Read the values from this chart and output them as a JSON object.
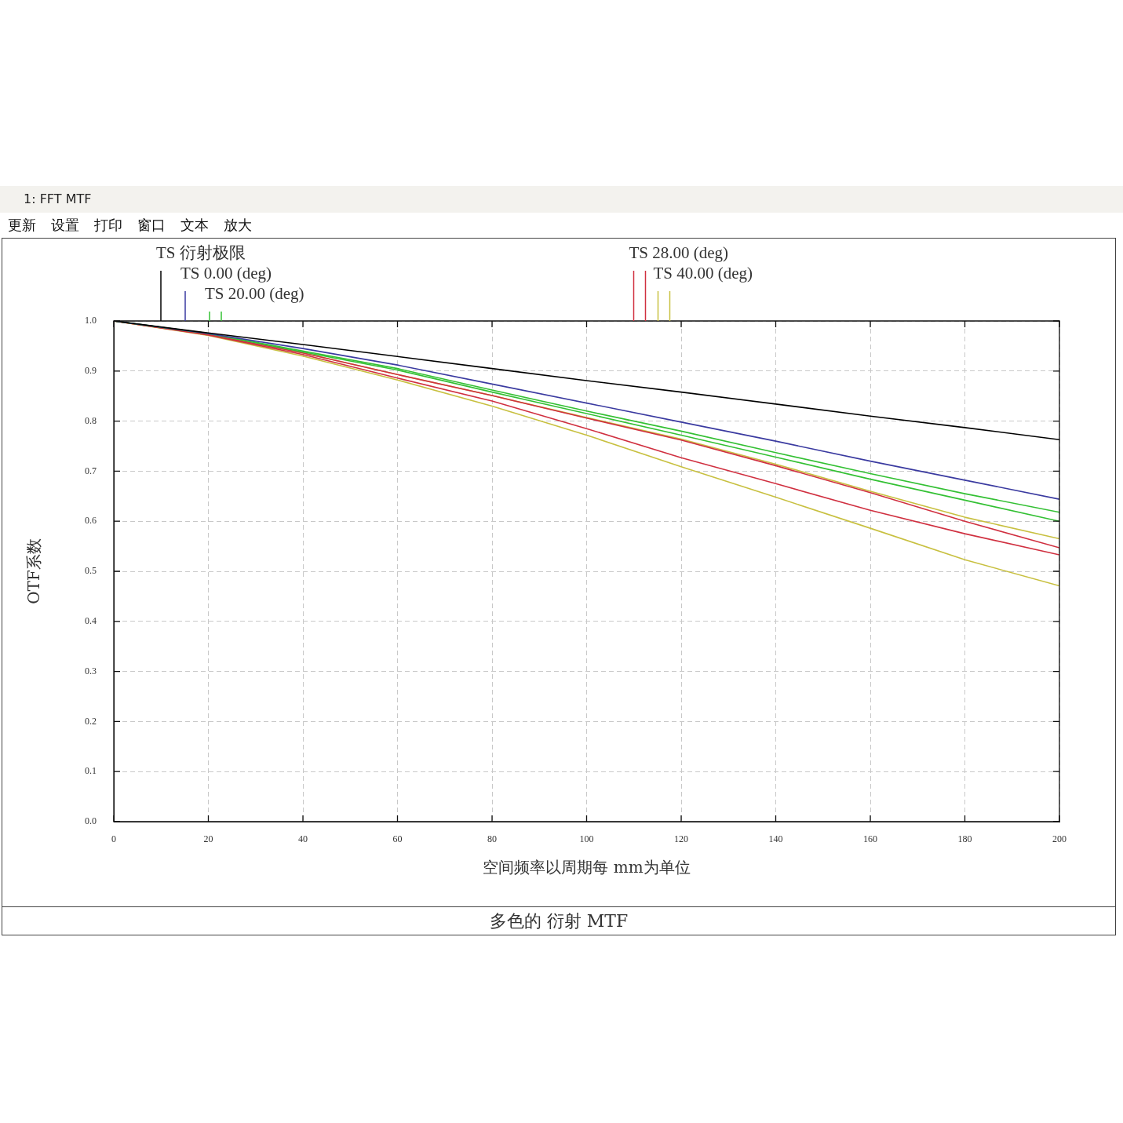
{
  "chart_data": {
    "type": "line",
    "title": "多色的 衍射 MTF",
    "xlabel": "空间频率以周期每 mm为单位",
    "ylabel": "OTF系数",
    "annotations": [
      "1: FFT MTF",
      "更新",
      "设置",
      "打印",
      "窗口",
      "文本",
      "放大"
    ],
    "x": [
      0,
      20,
      40,
      60,
      80,
      100,
      120,
      140,
      160,
      180,
      200
    ],
    "series": [
      {
        "name": "TS 衍射极限",
        "color": "#000000",
        "values": [
          1,
          0.976,
          0.953,
          0.929,
          0.905,
          0.881,
          0.858,
          0.834,
          0.81,
          0.787,
          0.763
        ]
      },
      {
        "name": "TS 0.00 (deg)",
        "color": "#3a3aa0",
        "values": [
          1,
          0.975,
          0.945,
          0.912,
          0.874,
          0.836,
          0.798,
          0.76,
          0.72,
          0.682,
          0.644
        ]
      },
      {
        "name": "TS 20.00 (deg)",
        "color": "#33c033",
        "values": [
          1,
          0.975,
          0.94,
          0.905,
          0.862,
          0.82,
          0.78,
          0.737,
          0.695,
          0.655,
          0.618
        ]
      },
      {
        "color": "#33c033",
        "values": [
          1,
          0.975,
          0.938,
          0.902,
          0.858,
          0.815,
          0.772,
          0.728,
          0.684,
          0.642,
          0.6
        ]
      },
      {
        "name": "TS 28.00 (deg)",
        "color": "#d03040",
        "values": [
          1,
          0.973,
          0.936,
          0.893,
          0.851,
          0.806,
          0.762,
          0.711,
          0.657,
          0.6,
          0.547
        ]
      },
      {
        "color": "#d03040",
        "values": [
          1,
          0.972,
          0.933,
          0.886,
          0.84,
          0.785,
          0.727,
          0.675,
          0.622,
          0.575,
          0.533
        ]
      },
      {
        "name": "TS 40.00 (deg)",
        "color": "#c8c040",
        "values": [
          1,
          0.973,
          0.936,
          0.893,
          0.851,
          0.807,
          0.764,
          0.714,
          0.66,
          0.608,
          0.565
        ]
      },
      {
        "color": "#c8c040",
        "values": [
          1,
          0.971,
          0.93,
          0.882,
          0.83,
          0.772,
          0.709,
          0.648,
          0.586,
          0.523,
          0.471
        ]
      }
    ],
    "xlim": [
      0,
      200
    ],
    "xticks": [
      0,
      20,
      40,
      60,
      80,
      100,
      120,
      140,
      160,
      180,
      200
    ],
    "ylim": [
      0,
      1
    ],
    "yticks": [
      {
        "value": 0,
        "label": "0.0"
      },
      0.1,
      0.2,
      0.3,
      0.4,
      0.5,
      0.6,
      0.7,
      0.8,
      0.9,
      {
        "value": 1,
        "label": "1.0"
      }
    ],
    "grid": true,
    "legend": "top"
  }
}
